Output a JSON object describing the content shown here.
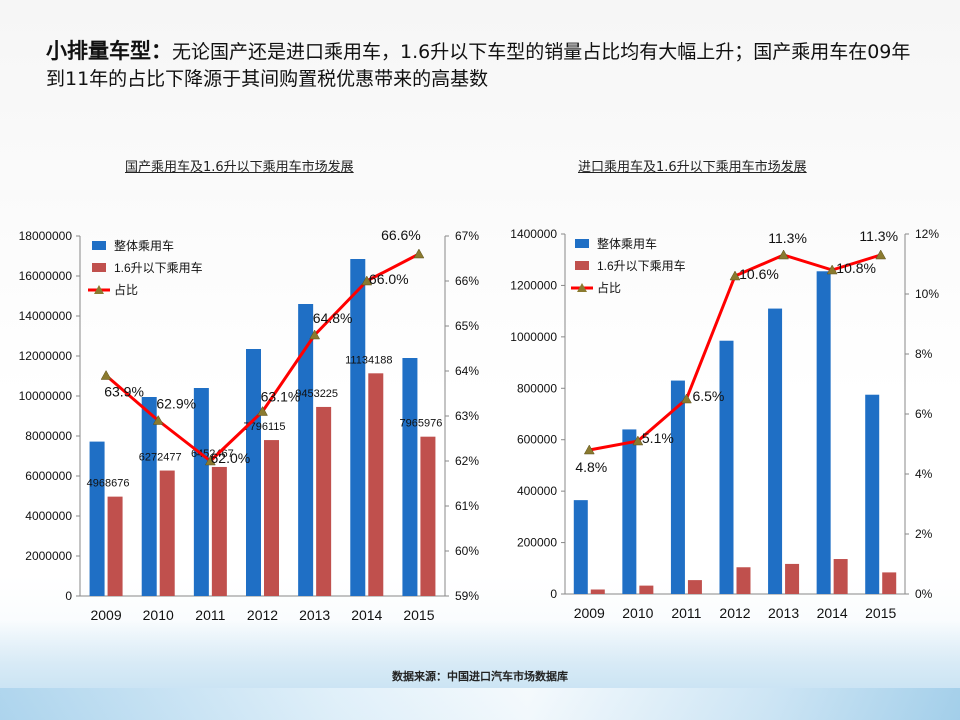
{
  "slide": {
    "title_lead": "小排量车型：",
    "title_text": "无论国产还是进口乘用车，1.6升以下车型的销量占比均有大幅上升；国产乘用车在09年到11年的占比下降源于其间购置税优惠带来的高基数",
    "source": "数据来源：中国进口汽车市场数据库"
  },
  "colors": {
    "total": "#1f6fc5",
    "small": "#c0504d",
    "share": "#ff0000",
    "marker": "#8a7a2f"
  },
  "chart_data": [
    {
      "type": "bar",
      "title": "国产乘用车及1.6升以下乘用车市场发展",
      "categories": [
        "2009",
        "2010",
        "2011",
        "2012",
        "2013",
        "2014",
        "2015"
      ],
      "series": [
        {
          "name": "整体乘用车",
          "values": [
            7720000,
            9950000,
            10400000,
            12350000,
            14600000,
            16850000,
            11900000
          ]
        },
        {
          "name": "1.6升以下乘用车",
          "values": [
            4968676,
            6272477,
            6452467,
            7796115,
            9453225,
            11134188,
            7965976
          ]
        },
        {
          "name": "占比",
          "type": "line",
          "axis": "right",
          "values": [
            63.9,
            62.9,
            62.0,
            63.1,
            64.8,
            66.0,
            66.6
          ]
        }
      ],
      "bar_labels": [
        "4968676",
        "6272477",
        "6452467",
        "7796115",
        "9453225",
        "11134188",
        "7965976"
      ],
      "line_labels": [
        "63.9%",
        "62.9%",
        "62.0%",
        "63.1%",
        "64.8%",
        "66.0%",
        "66.6%"
      ],
      "ylim": [
        0,
        18000000
      ],
      "y2lim": [
        59,
        67
      ],
      "yticks": [
        "0",
        "2000000",
        "4000000",
        "6000000",
        "8000000",
        "10000000",
        "12000000",
        "14000000",
        "16000000",
        "18000000"
      ],
      "y2ticks": [
        "59%",
        "60%",
        "61%",
        "62%",
        "63%",
        "64%",
        "65%",
        "66%",
        "67%"
      ],
      "legend": "top-left",
      "grid": false
    },
    {
      "type": "bar",
      "title": "进口乘用车及1.6升以下乘用车市场发展",
      "categories": [
        "2009",
        "2010",
        "2011",
        "2012",
        "2013",
        "2014",
        "2015"
      ],
      "series": [
        {
          "name": "整体乘用车",
          "values": [
            365000,
            640000,
            830000,
            985000,
            1110000,
            1255000,
            775000
          ]
        },
        {
          "name": "1.6升以下乘用车",
          "values": [
            17500,
            32600,
            54000,
            104000,
            117000,
            136000,
            84000
          ]
        },
        {
          "name": "占比",
          "type": "line",
          "axis": "right",
          "values": [
            4.8,
            5.1,
            6.5,
            10.6,
            11.3,
            10.8,
            11.3
          ]
        }
      ],
      "line_labels": [
        "4.8%",
        "5.1%",
        "6.5%",
        "10.6%",
        "11.3%",
        "10.8%",
        "11.3%"
      ],
      "ylim": [
        0,
        1400000
      ],
      "y2lim": [
        0,
        12
      ],
      "yticks": [
        "0",
        "200000",
        "400000",
        "600000",
        "800000",
        "1000000",
        "1200000",
        "1400000"
      ],
      "y2ticks": [
        "0%",
        "2%",
        "4%",
        "6%",
        "8%",
        "10%",
        "12%"
      ],
      "legend": "top-left",
      "grid": false
    }
  ]
}
